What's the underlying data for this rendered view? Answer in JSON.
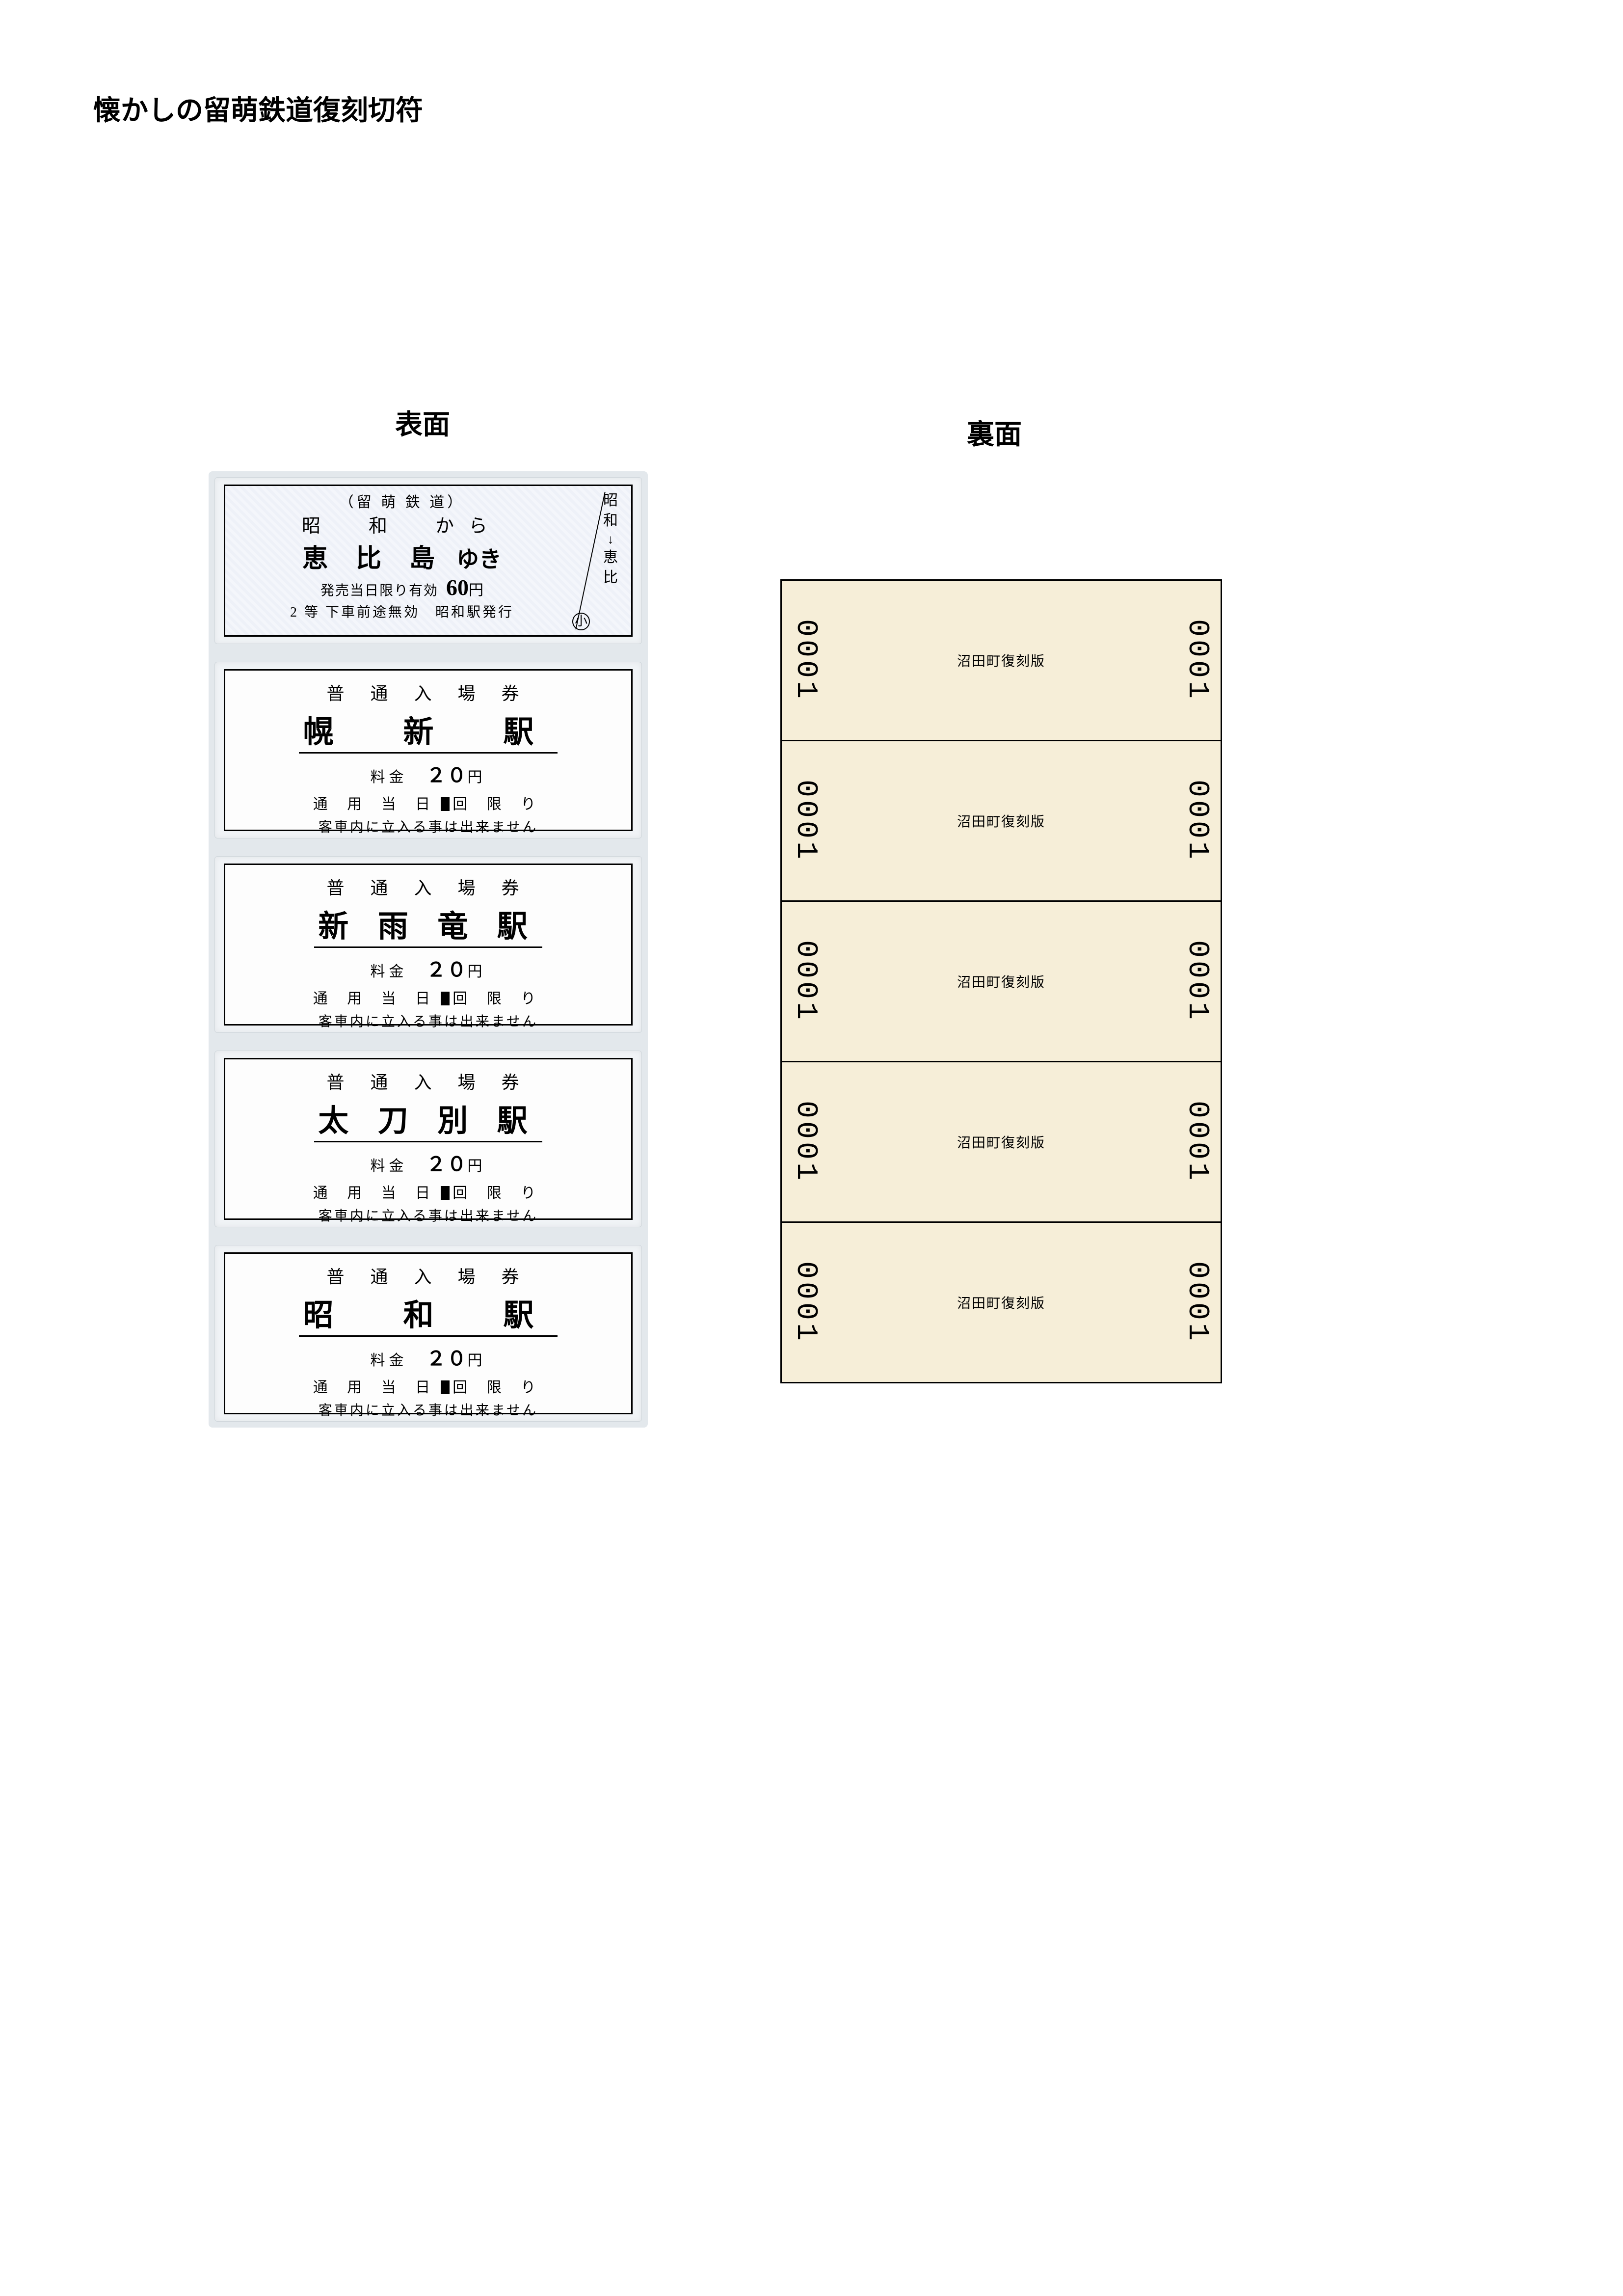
{
  "page_title": "懐かしの留萌鉄道復刻切符",
  "columns": {
    "front": "表面",
    "back": "裏面"
  },
  "colors": {
    "page_bg": "#ffffff",
    "sheet_bg": "#e3e8ec",
    "sleeve_bg": "#f0f3f6",
    "ticket_bg": "#fdfdfd",
    "back_bg": "#f6eed8",
    "border": "#000000"
  },
  "fare_ticket": {
    "company": "（留 萌 鉄 道）",
    "from_line": "昭　和　から",
    "destination": "恵 比 島",
    "yuki": "ゆき",
    "valid": "発売当日限り有効",
    "price": "60",
    "yen": "円",
    "class_line": "2 等 下車前途無効　昭和駅発行",
    "scissor": "小",
    "side_top1": "昭",
    "side_top2": "和",
    "side_arrow": "↓",
    "side_bot1": "恵",
    "side_bot2": "比"
  },
  "platform_tickets": [
    {
      "type": "普 通 入 場 券",
      "station": "幌　新　駅",
      "tight": false,
      "fee_label": "料金",
      "fee_value": "２０",
      "fee_yen": "円",
      "usage_a": "通 用 当 日",
      "usage_b": "回 限 り",
      "note": "客車内に立入る事は出来ません"
    },
    {
      "type": "普 通 入 場 券",
      "station": "新 雨 竜 駅",
      "tight": true,
      "fee_label": "料金",
      "fee_value": "２０",
      "fee_yen": "円",
      "usage_a": "通 用 当 日",
      "usage_b": "回 限 り",
      "note": "客車内に立入る事は出来ません"
    },
    {
      "type": "普 通 入 場 券",
      "station": "太 刀 別 駅",
      "tight": true,
      "fee_label": "料金",
      "fee_value": "２０",
      "fee_yen": "円",
      "usage_a": "通 用 当 日",
      "usage_b": "回 限 り",
      "note": "客車内に立入る事は出来ません"
    },
    {
      "type": "普 通 入 場 券",
      "station": "昭　和　駅",
      "tight": false,
      "fee_label": "料金",
      "fee_value": "２０",
      "fee_yen": "円",
      "usage_a": "通 用 当 日",
      "usage_b": "回 限 り",
      "note": "客車内に立入る事は出来ません"
    }
  ],
  "back_tickets": [
    {
      "serial": "0001",
      "label": "沼田町復刻版"
    },
    {
      "serial": "0001",
      "label": "沼田町復刻版"
    },
    {
      "serial": "0001",
      "label": "沼田町復刻版"
    },
    {
      "serial": "0001",
      "label": "沼田町復刻版"
    },
    {
      "serial": "0001",
      "label": "沼田町復刻版"
    }
  ]
}
